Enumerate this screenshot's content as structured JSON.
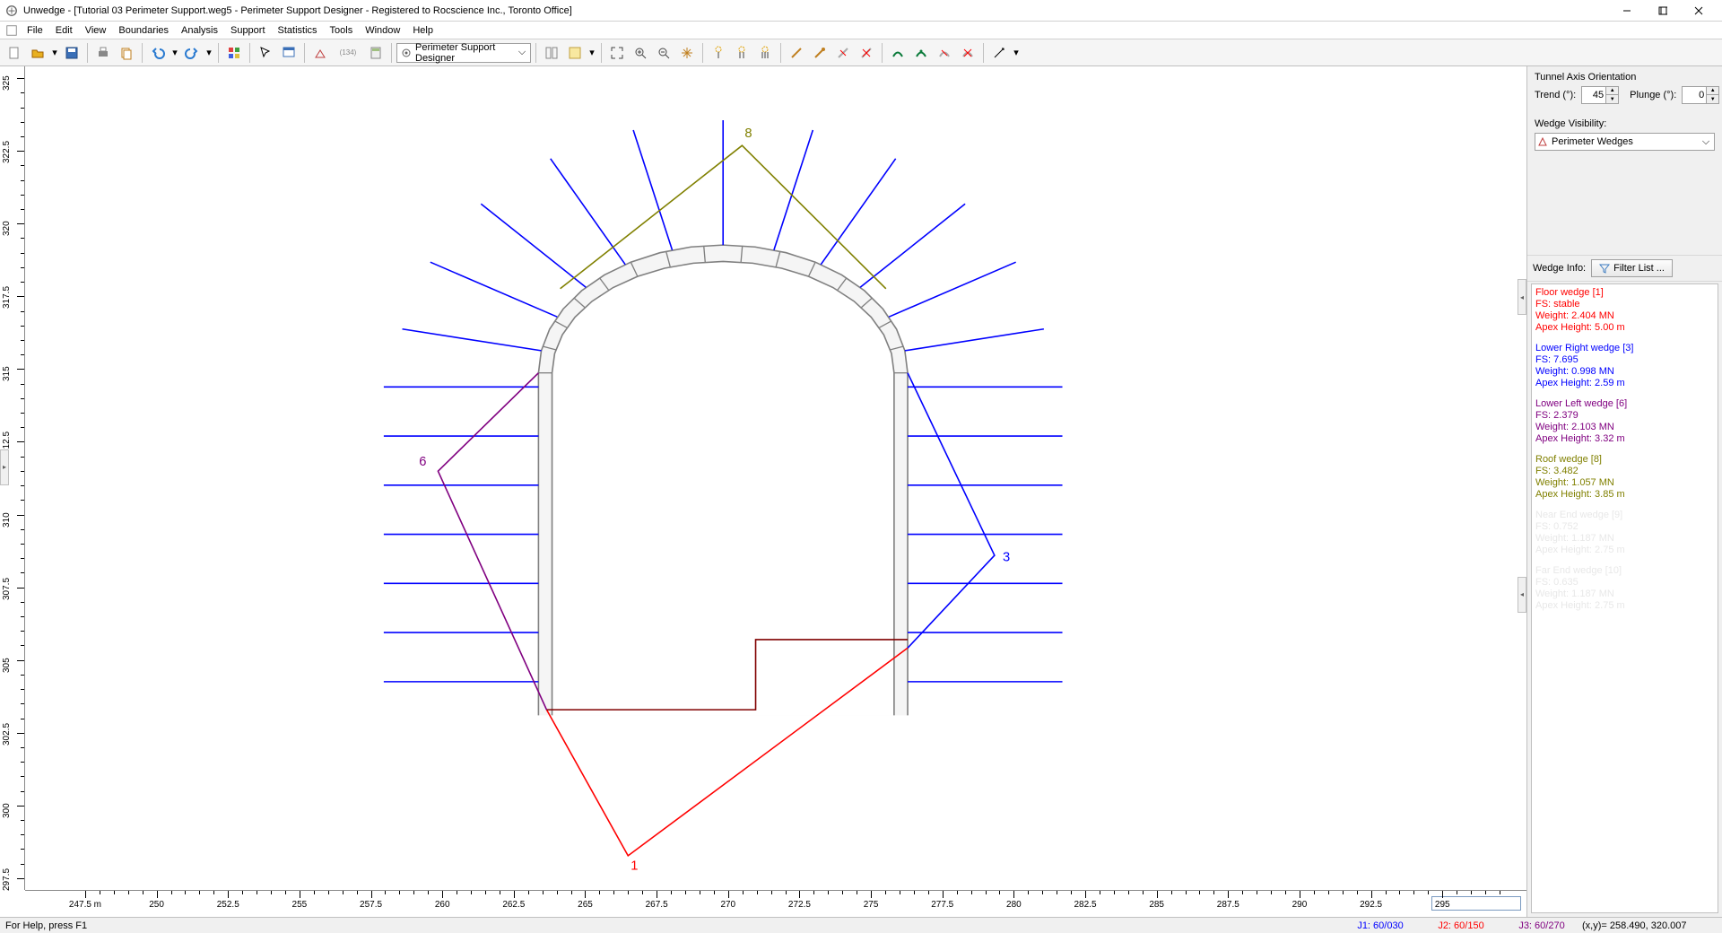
{
  "window": {
    "title": "Unwedge - [Tutorial 03 Perimeter Support.weg5 - Perimeter Support Designer - Registered to Rocscience Inc., Toronto Office]"
  },
  "menu": [
    "File",
    "Edit",
    "View",
    "Boundaries",
    "Analysis",
    "Support",
    "Statistics",
    "Tools",
    "Window",
    "Help"
  ],
  "view_selector": "Perimeter Support Designer",
  "toolbar_label": "(134)",
  "axis": {
    "trend_label": "Trend (°):",
    "trend": "45",
    "plunge_label": "Plunge (°):",
    "plunge": "0",
    "title": "Tunnel Axis Orientation"
  },
  "visibility": {
    "title": "Wedge Visibility:",
    "value": "Perimeter Wedges"
  },
  "wedgeinfo_label": "Wedge Info:",
  "filter_label": "Filter List ...",
  "wedges": [
    {
      "color": "#ff0000",
      "l1": "Floor wedge [1]",
      "l2": "FS: stable",
      "l3": "Weight: 2.404 MN",
      "l4": "Apex Height: 5.00 m"
    },
    {
      "color": "#0000ff",
      "l1": "Lower Right wedge [3]",
      "l2": "FS: 7.695",
      "l3": "Weight: 0.998 MN",
      "l4": "Apex Height: 2.59 m"
    },
    {
      "color": "#800080",
      "l1": "Lower Left wedge [6]",
      "l2": "FS: 2.379",
      "l3": "Weight: 2.103 MN",
      "l4": "Apex Height: 3.32 m"
    },
    {
      "color": "#808000",
      "l1": "Roof wedge [8]",
      "l2": "FS: 3.482",
      "l3": "Weight: 1.057 MN",
      "l4": "Apex Height: 3.85 m"
    }
  ],
  "wedges_dim": [
    {
      "l1": "Near End wedge [9]",
      "l2": "FS: 0.752",
      "l3": "Weight: 1.187 MN",
      "l4": "Apex Height: 2.75 m"
    },
    {
      "l1": "Far End wedge [10]",
      "l2": "FS: 0.635",
      "l3": "Weight: 1.187 MN",
      "l4": "Apex Height: 2.75 m"
    }
  ],
  "status": {
    "help": "For Help, press F1",
    "j1": "J1: 60/030",
    "j2": "J2: 60/150",
    "j3": "J3: 60/270",
    "xy": "(x,y)= 258.490, 320.007"
  },
  "xticks": [
    "247.5 m",
    "250",
    "252.5",
    "255",
    "257.5",
    "260",
    "262.5",
    "265",
    "267.5",
    "270",
    "272.5",
    "275",
    "277.5",
    "280",
    "282.5",
    "285",
    "287.5",
    "290",
    "292.5",
    "295"
  ],
  "yticks": [
    "297.5",
    "300",
    "302.5",
    "305",
    "307.5",
    "310",
    "312.5",
    "315",
    "317.5",
    "320",
    "322.5",
    "325"
  ],
  "colors": {
    "blue": "#0000ff",
    "red": "#ff0000",
    "olive": "#808000",
    "purple": "#800080",
    "maroon": "#800000",
    "gray": "#808080"
  },
  "node_labels": {
    "n1": "1",
    "n3": "3",
    "n6": "6",
    "n8": "8"
  }
}
